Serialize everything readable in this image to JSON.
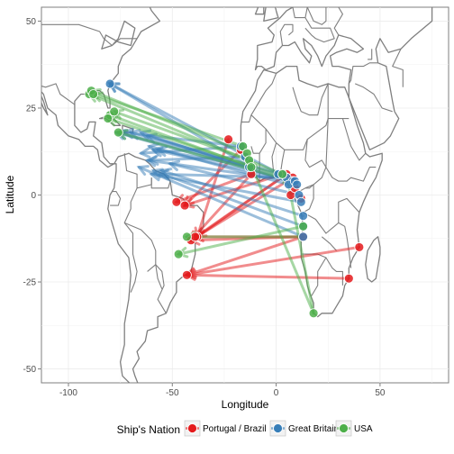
{
  "chart_data": {
    "type": "scatter",
    "title": "",
    "xlabel": "Longitude",
    "ylabel": "Latitude",
    "xlim": [
      -113,
      83
    ],
    "ylim": [
      -54,
      54
    ],
    "x_ticks": [
      -100,
      -50,
      0,
      50
    ],
    "y_ticks": [
      -50,
      -25,
      0,
      25,
      50
    ],
    "x_tick_labels": [
      "-100",
      "-50",
      "0",
      "50"
    ],
    "y_tick_labels": [
      "-50",
      "-25",
      "0",
      "25",
      "50"
    ],
    "grid": true,
    "basemap": "world country outlines",
    "legend": {
      "title": "Ship's Nation",
      "position": "bottom",
      "entries": [
        "Portugal / Brazil",
        "Great Britain",
        "USA"
      ]
    },
    "series": [
      {
        "name": "Portugal / Brazil",
        "color": "#e41a1c",
        "routes": [
          {
            "from": [
              5,
              6
            ],
            "to": [
              -41,
              -13
            ]
          },
          {
            "from": [
              8,
              5
            ],
            "to": [
              -41,
              -13
            ]
          },
          {
            "from": [
              13,
              -12
            ],
            "to": [
              -41,
              -13
            ]
          },
          {
            "from": [
              -12,
              6
            ],
            "to": [
              -41,
              -13
            ]
          },
          {
            "from": [
              35,
              -24
            ],
            "to": [
              -43,
              -23
            ]
          },
          {
            "from": [
              40,
              -15
            ],
            "to": [
              -43,
              -23
            ]
          },
          {
            "from": [
              13,
              -12
            ],
            "to": [
              -43,
              -23
            ]
          },
          {
            "from": [
              -12,
              6
            ],
            "to": [
              -48,
              -2
            ]
          },
          {
            "from": [
              -23,
              16
            ],
            "to": [
              -38,
              -12
            ]
          },
          {
            "from": [
              3,
              6
            ],
            "to": [
              -44,
              -3
            ]
          },
          {
            "from": [
              13,
              -12
            ],
            "to": [
              -39,
              -12
            ]
          },
          {
            "from": [
              -17,
              13
            ],
            "to": [
              -44,
              -3
            ]
          },
          {
            "from": [
              5,
              6
            ],
            "to": [
              -38,
              -12
            ]
          }
        ],
        "points": [
          [
            5,
            6
          ],
          [
            8,
            5
          ],
          [
            3,
            6
          ],
          [
            -12,
            6
          ],
          [
            -23,
            16
          ],
          [
            -17,
            13
          ],
          [
            13,
            -12
          ],
          [
            35,
            -24
          ],
          [
            40,
            -15
          ],
          [
            -41,
            -13
          ],
          [
            -43,
            -23
          ],
          [
            -48,
            -2
          ],
          [
            -44,
            -3
          ],
          [
            -38,
            -12
          ],
          [
            -39,
            -12
          ],
          [
            7,
            0
          ],
          [
            9,
            2
          ],
          [
            12,
            -1
          ]
        ]
      },
      {
        "name": "Great Britain",
        "color": "#377eb8",
        "routes": [
          {
            "from": [
              5,
              5
            ],
            "to": [
              -80,
              32
            ]
          },
          {
            "from": [
              -12,
              8
            ],
            "to": [
              -80,
              32
            ]
          },
          {
            "from": [
              8,
              4
            ],
            "to": [
              -77,
              18
            ]
          },
          {
            "from": [
              3,
              6
            ],
            "to": [
              -70,
              18
            ]
          },
          {
            "from": [
              -13,
              8
            ],
            "to": [
              -62,
              17
            ]
          },
          {
            "from": [
              6,
              3
            ],
            "to": [
              -61,
              14
            ]
          },
          {
            "from": [
              9,
              4
            ],
            "to": [
              -59,
              13
            ]
          },
          {
            "from": [
              -15,
              11
            ],
            "to": [
              -61,
              10
            ]
          },
          {
            "from": [
              13,
              -6
            ],
            "to": [
              -55,
              7
            ]
          },
          {
            "from": [
              12,
              -2
            ],
            "to": [
              -60,
              6
            ]
          },
          {
            "from": [
              13,
              -9
            ],
            "to": [
              -59,
              7
            ]
          },
          {
            "from": [
              -16,
              14
            ],
            "to": [
              -65,
              12
            ]
          },
          {
            "from": [
              1,
              6
            ],
            "to": [
              -76,
              18
            ]
          },
          {
            "from": [
              -12,
              8
            ],
            "to": [
              -57,
              13
            ]
          },
          {
            "from": [
              9,
              4
            ],
            "to": [
              -62,
              10
            ]
          },
          {
            "from": [
              6,
              5
            ],
            "to": [
              -56,
              6
            ]
          },
          {
            "from": [
              -17,
              14
            ],
            "to": [
              -73,
              18
            ]
          },
          {
            "from": [
              11,
              0
            ],
            "to": [
              -51,
              9
            ]
          },
          {
            "from": [
              13,
              -12
            ],
            "to": [
              -66,
              8
            ]
          },
          {
            "from": [
              10,
              3
            ],
            "to": [
              -65,
              18
            ]
          }
        ],
        "points": [
          [
            5,
            5
          ],
          [
            8,
            4
          ],
          [
            3,
            6
          ],
          [
            6,
            3
          ],
          [
            9,
            4
          ],
          [
            1,
            6
          ],
          [
            10,
            3
          ],
          [
            11,
            0
          ],
          [
            12,
            -2
          ],
          [
            13,
            -6
          ],
          [
            13,
            -9
          ],
          [
            13,
            -12
          ],
          [
            -12,
            8
          ],
          [
            -13,
            8
          ],
          [
            -15,
            11
          ],
          [
            -16,
            14
          ],
          [
            -17,
            14
          ],
          [
            -80,
            32
          ]
        ]
      },
      {
        "name": "USA",
        "color": "#4daf4a",
        "routes": [
          {
            "from": [
              3,
              6
            ],
            "to": [
              -90,
              29
            ]
          },
          {
            "from": [
              -14,
              12
            ],
            "to": [
              -89,
              30
            ]
          },
          {
            "from": [
              -12,
              8
            ],
            "to": [
              -80,
              23
            ]
          },
          {
            "from": [
              5,
              5
            ],
            "to": [
              -81,
              22
            ]
          },
          {
            "from": [
              8,
              4
            ],
            "to": [
              -76,
              18
            ]
          },
          {
            "from": [
              -16,
              14
            ],
            "to": [
              -88,
              29
            ]
          },
          {
            "from": [
              -13,
              10
            ],
            "to": [
              -78,
              24
            ]
          },
          {
            "from": [
              13,
              -9
            ],
            "to": [
              -47,
              -17
            ]
          },
          {
            "from": [
              13,
              -12
            ],
            "to": [
              -43,
              -12
            ]
          },
          {
            "from": [
              18,
              -34
            ],
            "to": [
              5,
              6
            ]
          },
          {
            "from": [
              18,
              -34
            ],
            "to": [
              -13,
              10
            ]
          }
        ],
        "points": [
          [
            -90,
            29
          ],
          [
            -89,
            30
          ],
          [
            -88,
            29
          ],
          [
            -80,
            23
          ],
          [
            -81,
            22
          ],
          [
            -78,
            24
          ],
          [
            -76,
            18
          ],
          [
            -47,
            -17
          ],
          [
            -43,
            -12
          ],
          [
            18,
            -34
          ],
          [
            -16,
            14
          ],
          [
            -14,
            12
          ],
          [
            -13,
            10
          ],
          [
            3,
            6
          ],
          [
            -12,
            8
          ],
          [
            13,
            -9
          ]
        ]
      }
    ]
  }
}
